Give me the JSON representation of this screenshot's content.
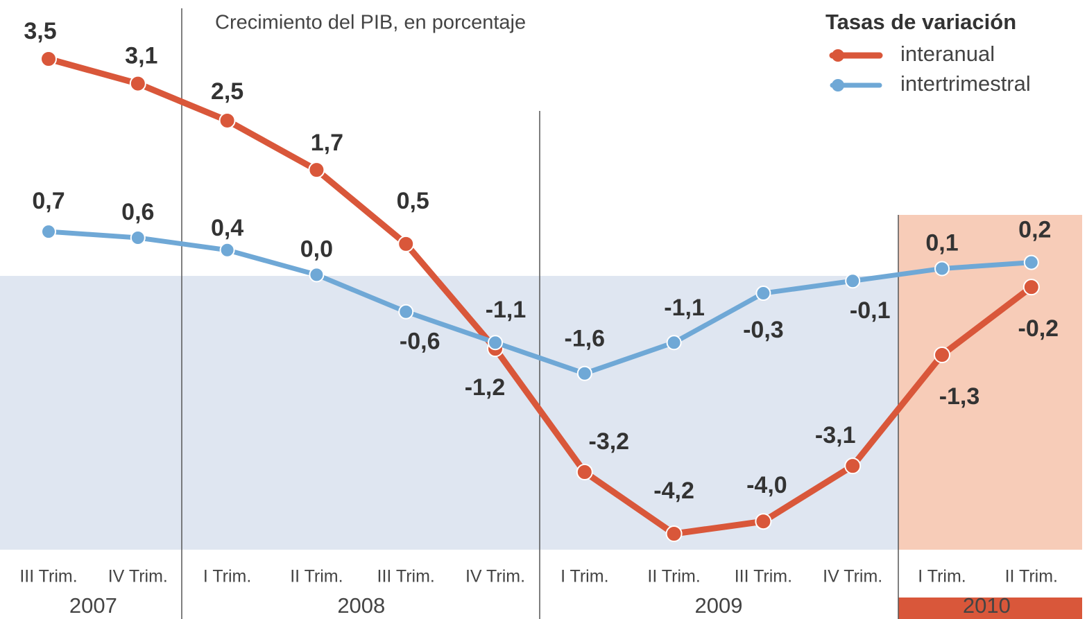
{
  "chart_data": {
    "type": "line",
    "title": "Crecimiento del PIB, en porcentaje",
    "legend_title": "Tasas de variación",
    "groups": [
      {
        "label": "2007",
        "categories": [
          "III Trim.",
          "IV Trim."
        ]
      },
      {
        "label": "2008",
        "categories": [
          "I Trim.",
          "II Trim.",
          "III Trim.",
          "IV Trim."
        ]
      },
      {
        "label": "2009",
        "categories": [
          "I Trim.",
          "II Trim.",
          "III Trim.",
          "IV Trim."
        ]
      },
      {
        "label": "2010",
        "categories": [
          "I Trim.",
          "II Trim."
        ]
      }
    ],
    "series": [
      {
        "name": "interanual",
        "color": "#d9573a",
        "values": [
          3.5,
          3.1,
          2.5,
          1.7,
          0.5,
          -1.2,
          -3.2,
          -4.2,
          -4.0,
          -3.1,
          -1.3,
          -0.2
        ],
        "value_labels": [
          "3,5",
          "3,1",
          "2,5",
          "1,7",
          "0,5",
          "-1,2",
          "-3,2",
          "-4,2",
          "-4,0",
          "-3,1",
          "-1,3",
          "-0,2"
        ]
      },
      {
        "name": "intertrimestral",
        "color": "#6fa8d6",
        "values": [
          0.7,
          0.6,
          0.4,
          0.0,
          -0.6,
          -1.1,
          -1.6,
          -1.1,
          -0.3,
          -0.1,
          0.1,
          0.2
        ],
        "value_labels": [
          "0,7",
          "0,6",
          "0,4",
          "0,0",
          "-0,6",
          "-1,1",
          "-1,6",
          "-1,1",
          "-0,3",
          "-0,1",
          "0,1",
          "0,2"
        ]
      }
    ]
  }
}
